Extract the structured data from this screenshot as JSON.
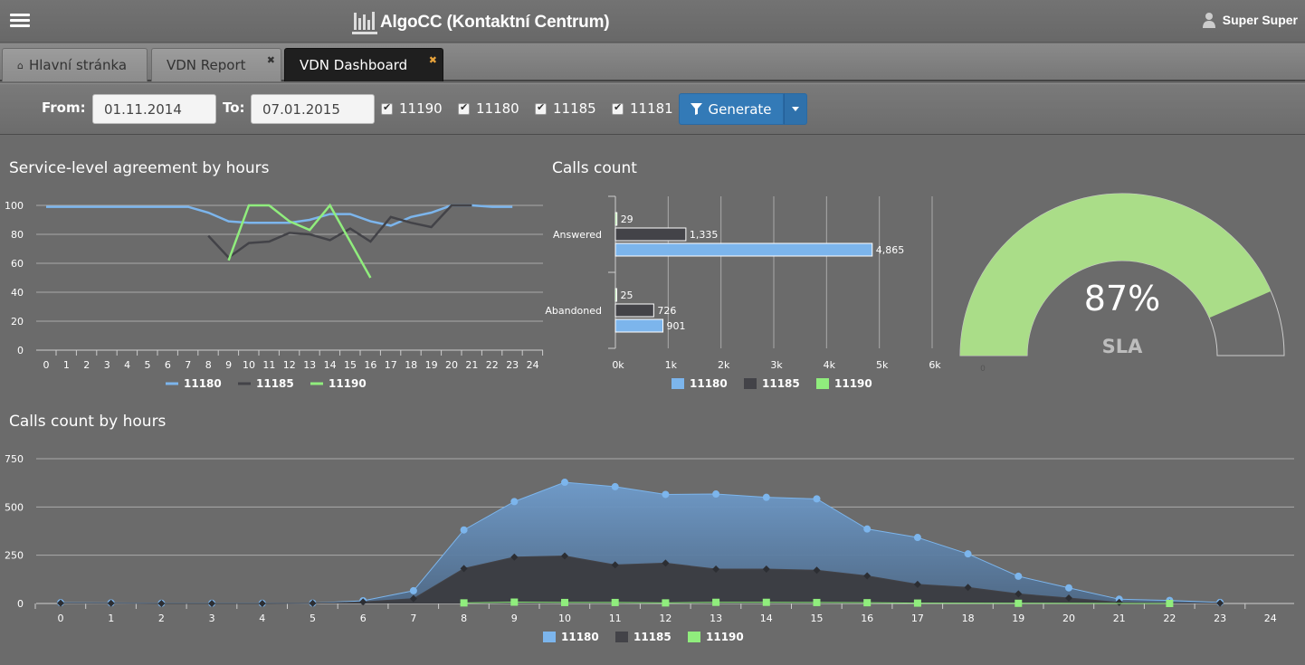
{
  "header": {
    "title": "AlgoCC (Kontaktní Centrum)",
    "user_name": "Super Super"
  },
  "tabs": [
    {
      "label": "Hlavní stránka",
      "active": false,
      "closable": false
    },
    {
      "label": "VDN Report",
      "active": false,
      "closable": true
    },
    {
      "label": "VDN Dashboard",
      "active": true,
      "closable": true
    }
  ],
  "filters": {
    "from_label": "From:",
    "from_value": "01.11.2014",
    "to_label": "To:",
    "to_value": "07.01.2015",
    "vdns": [
      {
        "label": "11190",
        "checked": true
      },
      {
        "label": "11180",
        "checked": true
      },
      {
        "label": "11185",
        "checked": true
      },
      {
        "label": "11181",
        "checked": true
      }
    ],
    "generate_label": "Generate"
  },
  "colors": {
    "11180": "#7cb5ec",
    "11185": "#434348",
    "11190": "#90ed7d",
    "button": "#337ab7"
  },
  "chart_data": [
    {
      "type": "line",
      "title": "Service-level agreement by hours",
      "x": [
        0,
        1,
        2,
        3,
        4,
        5,
        6,
        7,
        8,
        9,
        10,
        11,
        12,
        13,
        14,
        15,
        16,
        17,
        18,
        19,
        20,
        21,
        22,
        23,
        24
      ],
      "ylim": [
        0,
        100
      ],
      "yticks": [
        0,
        20,
        40,
        60,
        80,
        100
      ],
      "series": [
        {
          "name": "11180",
          "values": [
            99,
            99,
            99,
            99,
            99,
            99,
            99,
            99,
            95,
            89,
            88,
            88,
            88,
            90,
            94,
            94,
            89,
            86,
            92,
            95,
            100,
            100,
            99,
            99,
            null
          ]
        },
        {
          "name": "11185",
          "values": [
            null,
            null,
            null,
            null,
            null,
            null,
            null,
            null,
            79,
            64,
            74,
            75,
            81,
            80,
            76,
            84,
            75,
            92,
            88,
            85,
            100,
            100,
            null,
            null,
            null
          ]
        },
        {
          "name": "11190",
          "values": [
            null,
            null,
            null,
            null,
            null,
            null,
            null,
            null,
            null,
            62,
            100,
            100,
            89,
            83,
            100,
            75,
            50,
            null,
            null,
            null,
            null,
            null,
            null,
            null,
            null
          ]
        }
      ],
      "legend": "bottom"
    },
    {
      "type": "bar",
      "title": "Calls count",
      "orientation": "horizontal",
      "categories": [
        "Answered",
        "Abandoned"
      ],
      "series": [
        {
          "name": "11190",
          "values": [
            29,
            25
          ]
        },
        {
          "name": "11185",
          "values": [
            1335,
            726
          ]
        },
        {
          "name": "11180",
          "values": [
            4865,
            901
          ]
        }
      ],
      "data_labels": [
        [
          "29",
          "1,335",
          "4,865"
        ],
        [
          "25",
          "726",
          "901"
        ]
      ],
      "xlim": [
        0,
        6000
      ],
      "xticks": [
        "0k",
        "1k",
        "2k",
        "3k",
        "4k",
        "5k",
        "6k"
      ],
      "legend_order": [
        "11180",
        "11185",
        "11190"
      ],
      "legend": "bottom"
    },
    {
      "type": "gauge",
      "value": 87,
      "min": 0,
      "max": 100,
      "value_label": "87%",
      "label": "SLA",
      "min_label": "0"
    },
    {
      "type": "area",
      "title": "Calls count by hours",
      "x": [
        0,
        1,
        2,
        3,
        4,
        5,
        6,
        7,
        8,
        9,
        10,
        11,
        12,
        13,
        14,
        15,
        16,
        17,
        18,
        19,
        20,
        21,
        22,
        23,
        24
      ],
      "ylim": [
        0,
        750
      ],
      "yticks": [
        0,
        250,
        500,
        750
      ],
      "series": [
        {
          "name": "11180",
          "values": [
            4,
            3,
            1,
            1,
            1,
            2,
            14,
            66,
            381,
            528,
            628,
            605,
            565,
            567,
            550,
            542,
            386,
            342,
            257,
            141,
            81,
            22,
            16,
            5,
            null
          ]
        },
        {
          "name": "11185",
          "values": [
            2,
            1,
            0,
            0,
            0,
            1,
            8,
            25,
            181,
            240,
            246,
            200,
            209,
            178,
            178,
            172,
            143,
            99,
            83,
            50,
            28,
            6,
            3,
            2,
            null
          ]
        },
        {
          "name": "11190",
          "values": [
            null,
            null,
            null,
            null,
            null,
            null,
            null,
            null,
            3,
            7,
            5,
            5,
            3,
            6,
            6,
            5,
            4,
            2,
            null,
            1,
            null,
            null,
            0,
            null,
            null
          ]
        }
      ],
      "legend": "bottom"
    }
  ]
}
